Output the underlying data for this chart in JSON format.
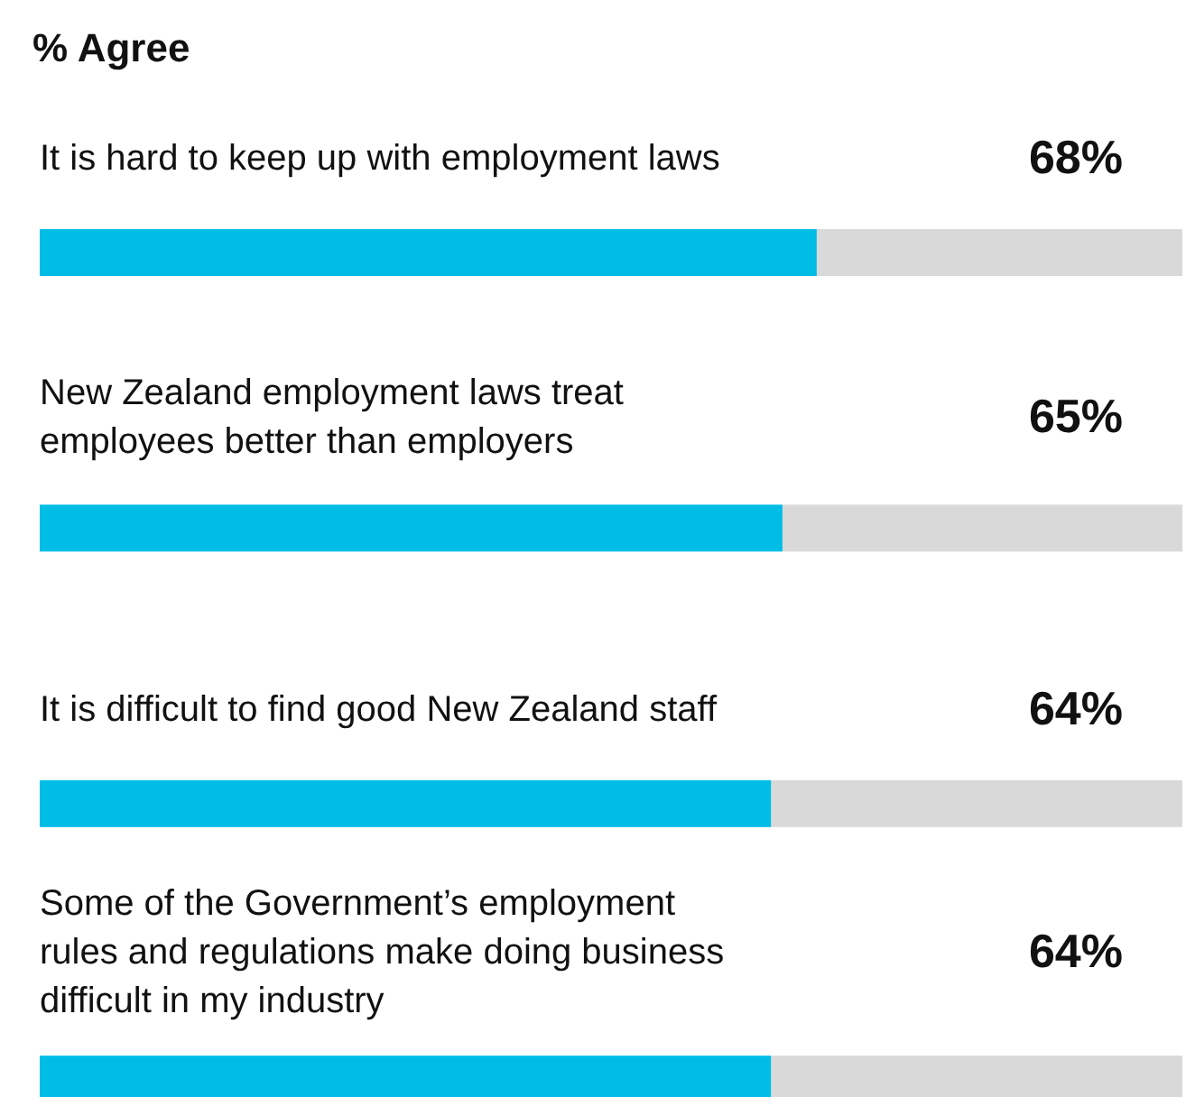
{
  "chart_data": {
    "type": "bar",
    "orientation": "horizontal",
    "title": "% Agree",
    "categories": [
      "It is hard to keep up with employment laws",
      "New Zealand employment laws treat\nemployees better than employers",
      "It is difficult to find good New Zealand staff",
      "Some of the Government’s employment\nrules and regulations make doing business\ndifficult in my industry"
    ],
    "values": [
      68,
      65,
      64,
      64
    ],
    "color": "#00bde6",
    "value_labels": [
      "68%",
      "65%",
      "64%",
      "64%"
    ],
    "xlim": [
      0,
      100
    ]
  }
}
